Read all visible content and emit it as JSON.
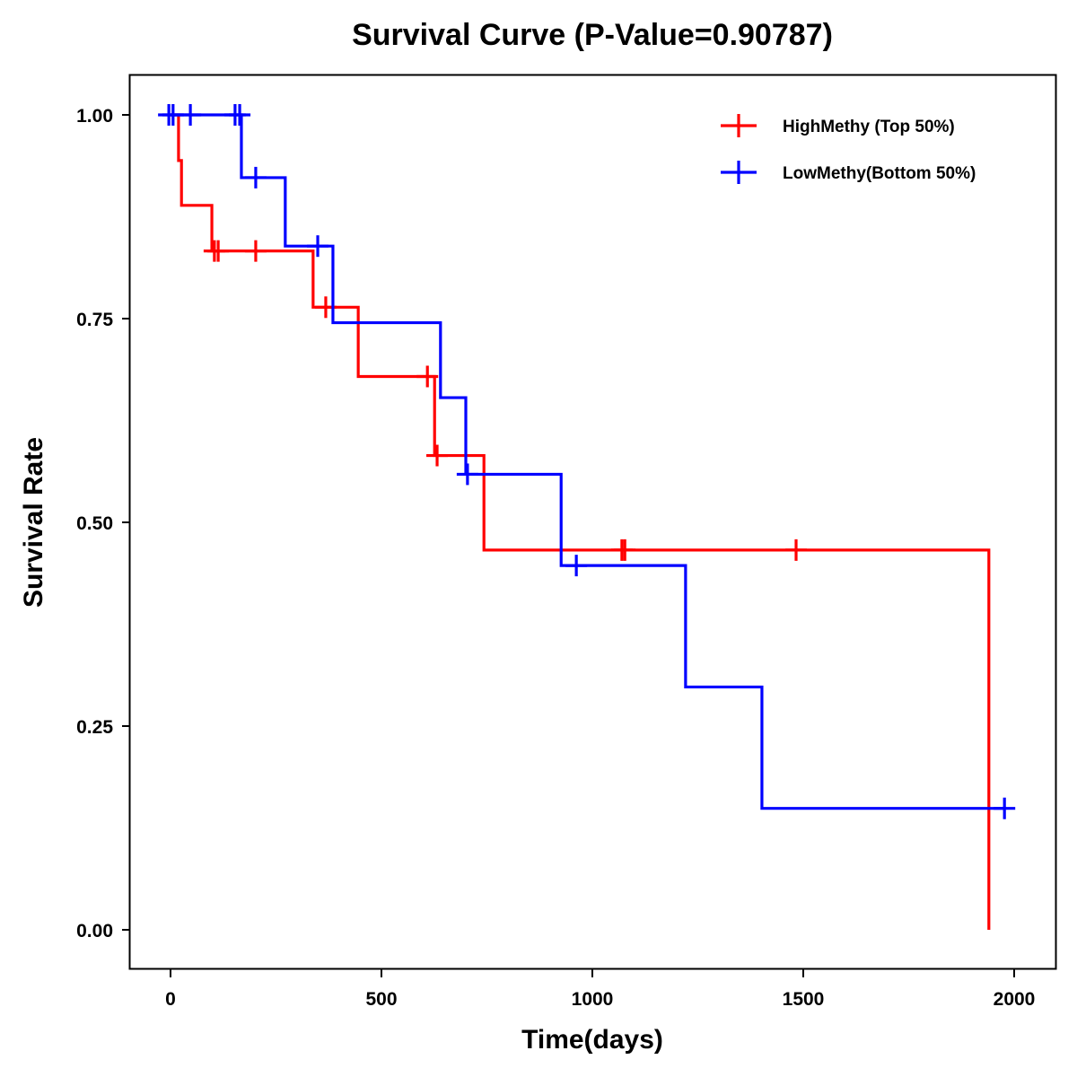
{
  "chart_data": {
    "type": "line",
    "subtype": "kaplan-meier-step",
    "title": "Survival Curve (P-Value=0.90787)",
    "xlabel": "Time(days)",
    "ylabel": "Survival Rate",
    "xlim": [
      -95,
      2090
    ],
    "ylim": [
      -0.05,
      1.05
    ],
    "xticks": [
      0,
      500,
      1000,
      1500,
      2000
    ],
    "xtick_labels": [
      "0",
      "500",
      "1000",
      "1500",
      "2000"
    ],
    "yticks": [
      0,
      0.25,
      0.5,
      0.75,
      1.0
    ],
    "ytick_labels": [
      "0.00",
      "0.25",
      "0.50",
      "0.75",
      "1.00"
    ],
    "grid": false,
    "legend_position": "top-right",
    "series": [
      {
        "name": "HighMethy (Top 50%)",
        "color": "#ff0000",
        "steps": [
          {
            "t": 0,
            "s": 1.0
          },
          {
            "t": 19,
            "s": 0.944
          },
          {
            "t": 26,
            "s": 0.889
          },
          {
            "t": 98,
            "s": 0.833
          },
          {
            "t": 338,
            "s": 0.764
          },
          {
            "t": 445,
            "s": 0.679
          },
          {
            "t": 626,
            "s": 0.582
          },
          {
            "t": 743,
            "s": 0.466
          },
          {
            "t": 1940,
            "s": 0.0
          }
        ],
        "end_t": 1940,
        "censored": [
          104,
          113,
          202,
          368,
          609,
          632,
          1070,
          1077,
          1483
        ]
      },
      {
        "name": "LowMethy(Bottom 50%)",
        "color": "#0000ff",
        "steps": [
          {
            "t": 0,
            "s": 1.0
          },
          {
            "t": 168,
            "s": 0.923
          },
          {
            "t": 272,
            "s": 0.839
          },
          {
            "t": 385,
            "s": 0.745
          },
          {
            "t": 640,
            "s": 0.653
          },
          {
            "t": 700,
            "s": 0.559
          },
          {
            "t": 926,
            "s": 0.447
          },
          {
            "t": 1221,
            "s": 0.298
          },
          {
            "t": 1402,
            "s": 0.149
          }
        ],
        "end_t": 1977,
        "censored": [
          -4,
          6,
          47,
          153,
          164,
          202,
          349,
          704,
          962,
          1977
        ]
      }
    ]
  }
}
